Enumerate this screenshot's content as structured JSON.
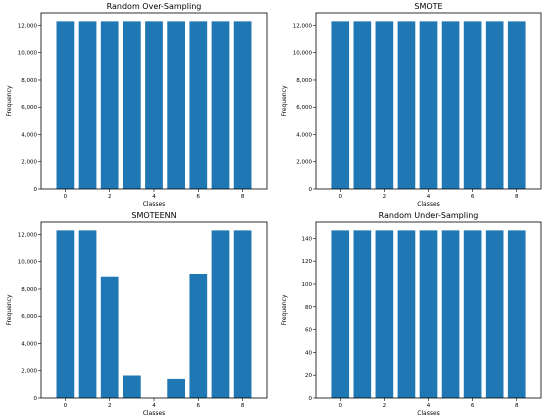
{
  "chart_data": [
    {
      "type": "bar",
      "title": "Random Over-Sampling",
      "xlabel": "Classes",
      "ylabel": "Frequency",
      "categories": [
        0,
        1,
        2,
        3,
        4,
        5,
        6,
        7,
        8
      ],
      "values": [
        12300,
        12300,
        12300,
        12300,
        12300,
        12300,
        12300,
        12300,
        12300
      ],
      "ylim": [
        0,
        12915
      ],
      "xticks": [
        0,
        2,
        4,
        6,
        8
      ],
      "yticks": [
        0,
        2000,
        4000,
        6000,
        8000,
        10000,
        12000
      ],
      "ytick_labels": [
        "0",
        "2,000",
        "4,000",
        "6,000",
        "8,000",
        "10,000",
        "12,000"
      ],
      "color": "#1f77b4"
    },
    {
      "type": "bar",
      "title": "SMOTE",
      "xlabel": "Classes",
      "ylabel": "Frequency",
      "categories": [
        0,
        1,
        2,
        3,
        4,
        5,
        6,
        7,
        8
      ],
      "values": [
        12300,
        12300,
        12300,
        12300,
        12300,
        12300,
        12300,
        12300,
        12300
      ],
      "ylim": [
        0,
        12915
      ],
      "xticks": [
        0,
        2,
        4,
        6,
        8
      ],
      "yticks": [
        0,
        2000,
        4000,
        6000,
        8000,
        10000,
        12000
      ],
      "ytick_labels": [
        "0",
        "2,000",
        "4,000",
        "6,000",
        "8,000",
        "10,000",
        "12,000"
      ],
      "color": "#1f77b4"
    },
    {
      "type": "bar",
      "title": "SMOTEENN",
      "xlabel": "Classes",
      "ylabel": "Frequency",
      "categories": [
        0,
        1,
        2,
        3,
        4,
        5,
        6,
        7,
        8
      ],
      "values": [
        12300,
        12300,
        8900,
        1650,
        0,
        1400,
        9100,
        12300,
        12300
      ],
      "ylim": [
        0,
        12915
      ],
      "xticks": [
        0,
        2,
        4,
        6,
        8
      ],
      "yticks": [
        0,
        2000,
        4000,
        6000,
        8000,
        10000,
        12000
      ],
      "ytick_labels": [
        "0",
        "2,000",
        "4,000",
        "6,000",
        "8,000",
        "10,000",
        "12,000"
      ],
      "color": "#1f77b4"
    },
    {
      "type": "bar",
      "title": "Random Under-Sampling",
      "xlabel": "Classes",
      "ylabel": "Frequency",
      "categories": [
        0,
        1,
        2,
        3,
        4,
        5,
        6,
        7,
        8
      ],
      "values": [
        147,
        147,
        147,
        147,
        147,
        147,
        147,
        147,
        147
      ],
      "ylim": [
        0,
        154.35
      ],
      "xticks": [
        0,
        2,
        4,
        6,
        8
      ],
      "yticks": [
        0,
        20,
        40,
        60,
        80,
        100,
        120,
        140
      ],
      "ytick_labels": [
        "0",
        "20",
        "40",
        "60",
        "80",
        "100",
        "120",
        "140"
      ],
      "color": "#1f77b4"
    }
  ]
}
